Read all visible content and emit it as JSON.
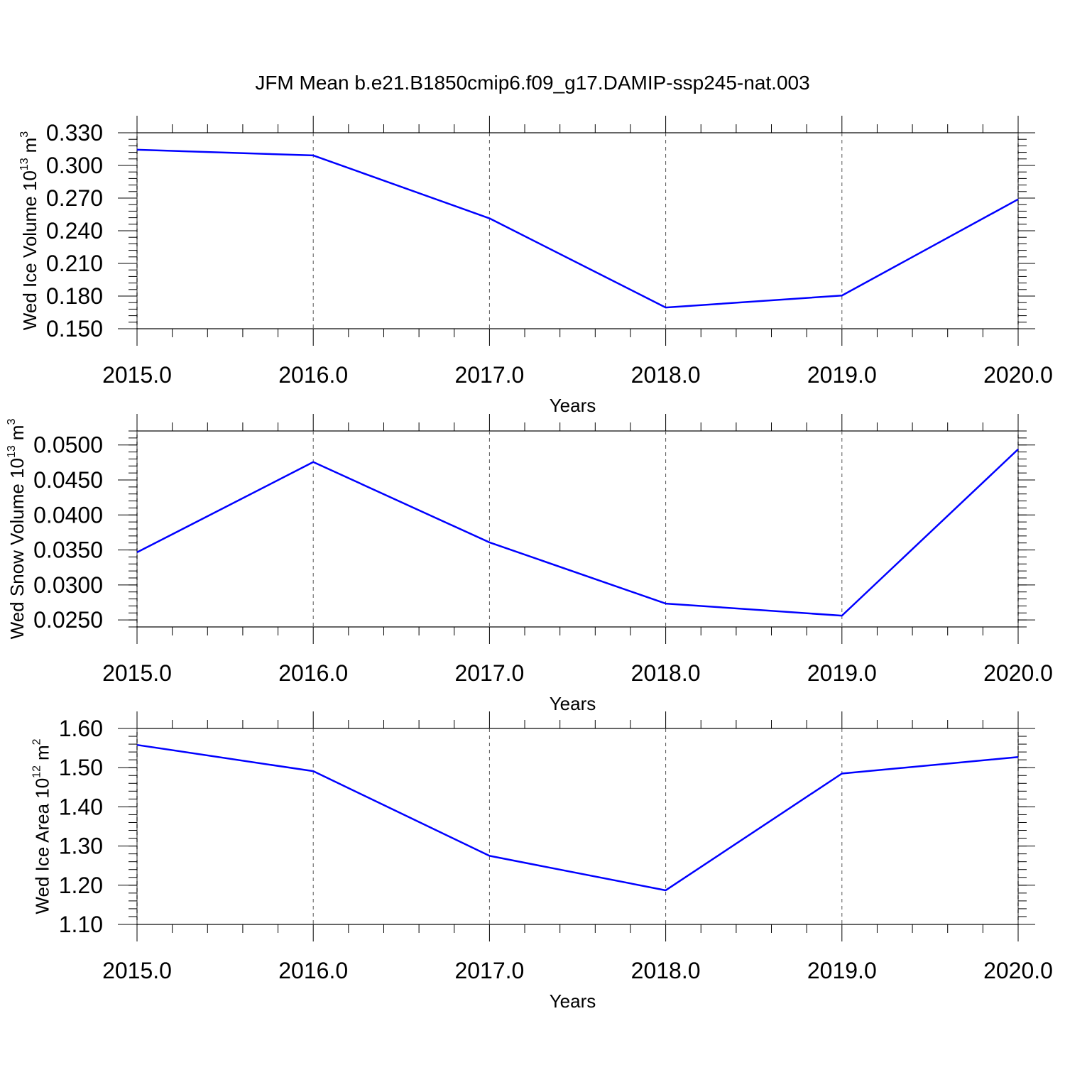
{
  "title": "JFM Mean b.e21.B1850cmip6.f09_g17.DAMIP-ssp245-nat.003",
  "chart_data": [
    {
      "type": "line",
      "x": [
        2015,
        2016,
        2017,
        2018,
        2019,
        2020
      ],
      "values": [
        0.3144,
        0.3092,
        0.2514,
        0.1695,
        0.1805,
        0.2689
      ],
      "color": "#0000ff",
      "xlim": [
        2015,
        2020
      ],
      "xticks": [
        {
          "value": 2015,
          "label": "2015.0"
        },
        {
          "value": 2016,
          "label": "2016.0"
        },
        {
          "value": 2017,
          "label": "2017.0"
        },
        {
          "value": 2018,
          "label": "2018.0"
        },
        {
          "value": 2019,
          "label": "2019.0"
        },
        {
          "value": 2020,
          "label": "2020.0"
        }
      ],
      "ylim": [
        0.15,
        0.33
      ],
      "yticks": [
        {
          "value": 0.15,
          "label": "0.150"
        },
        {
          "value": 0.18,
          "label": "0.180"
        },
        {
          "value": 0.21,
          "label": "0.210"
        },
        {
          "value": 0.24,
          "label": "0.240"
        },
        {
          "value": 0.27,
          "label": "0.270"
        },
        {
          "value": 0.3,
          "label": "0.300"
        },
        {
          "value": 0.33,
          "label": "0.330"
        }
      ],
      "xlabel": "Years",
      "ylabel": {
        "text": "Wed Ice Volume 10",
        "exponent": "13",
        "unit": "m",
        "unit_exponent": "3"
      },
      "x_grid": true,
      "minor_per_major": 5
    },
    {
      "type": "line",
      "x": [
        2015,
        2016,
        2017,
        2018,
        2019,
        2020
      ],
      "values": [
        0.03466,
        0.04756,
        0.03608,
        0.02734,
        0.02561,
        0.04939
      ],
      "color": "#0000ff",
      "xlim": [
        2015,
        2020
      ],
      "xticks": [
        {
          "value": 2015,
          "label": "2015.0"
        },
        {
          "value": 2016,
          "label": "2016.0"
        },
        {
          "value": 2017,
          "label": "2017.0"
        },
        {
          "value": 2018,
          "label": "2018.0"
        },
        {
          "value": 2019,
          "label": "2019.0"
        },
        {
          "value": 2020,
          "label": "2020.0"
        }
      ],
      "ylim": [
        0.024,
        0.052
      ],
      "yticks": [
        {
          "value": 0.025,
          "label": "0.0250"
        },
        {
          "value": 0.03,
          "label": "0.0300"
        },
        {
          "value": 0.035,
          "label": "0.0350"
        },
        {
          "value": 0.04,
          "label": "0.0400"
        },
        {
          "value": 0.045,
          "label": "0.0450"
        },
        {
          "value": 0.05,
          "label": "0.0500"
        }
      ],
      "xlabel": "Years",
      "ylabel": {
        "text": "Wed Snow Volume 10",
        "exponent": "13",
        "unit": "m",
        "unit_exponent": "3"
      },
      "x_grid": true,
      "minor_per_major": 5
    },
    {
      "type": "line",
      "x": [
        2015,
        2016,
        2017,
        2018,
        2019,
        2020
      ],
      "values": [
        1.558,
        1.491,
        1.275,
        1.187,
        1.485,
        1.527
      ],
      "color": "#0000ff",
      "xlim": [
        2015,
        2020
      ],
      "xticks": [
        {
          "value": 2015,
          "label": "2015.0"
        },
        {
          "value": 2016,
          "label": "2016.0"
        },
        {
          "value": 2017,
          "label": "2017.0"
        },
        {
          "value": 2018,
          "label": "2018.0"
        },
        {
          "value": 2019,
          "label": "2019.0"
        },
        {
          "value": 2020,
          "label": "2020.0"
        }
      ],
      "ylim": [
        1.1,
        1.6
      ],
      "yticks": [
        {
          "value": 1.1,
          "label": "1.10"
        },
        {
          "value": 1.2,
          "label": "1.20"
        },
        {
          "value": 1.3,
          "label": "1.30"
        },
        {
          "value": 1.4,
          "label": "1.40"
        },
        {
          "value": 1.5,
          "label": "1.50"
        },
        {
          "value": 1.6,
          "label": "1.60"
        }
      ],
      "xlabel": "Years",
      "ylabel": {
        "text": "Wed Ice Area 10",
        "exponent": "12",
        "unit": "m",
        "unit_exponent": "2"
      },
      "x_grid": true,
      "minor_per_major": 5
    }
  ]
}
